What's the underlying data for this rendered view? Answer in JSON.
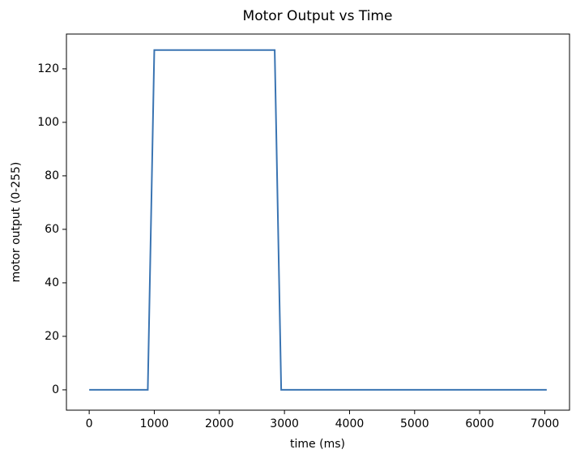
{
  "chart_data": {
    "type": "line",
    "title": "Motor Output vs Time",
    "x_label": "time (ms)",
    "y_label": "motor output (0-255)",
    "x": [
      0,
      900,
      1000,
      2850,
      2950,
      7030
    ],
    "series": [
      {
        "name": "motor output",
        "color": "#3a74b2",
        "values": [
          0,
          0,
          127,
          127,
          0,
          0
        ]
      }
    ],
    "xlim": [
      -350,
      7380
    ],
    "ylim": [
      -7.6,
      133
    ],
    "xticks": [
      0,
      1000,
      2000,
      3000,
      4000,
      5000,
      6000,
      7000
    ],
    "yticks": [
      0,
      20,
      40,
      60,
      80,
      100,
      120
    ],
    "grid": false
  }
}
